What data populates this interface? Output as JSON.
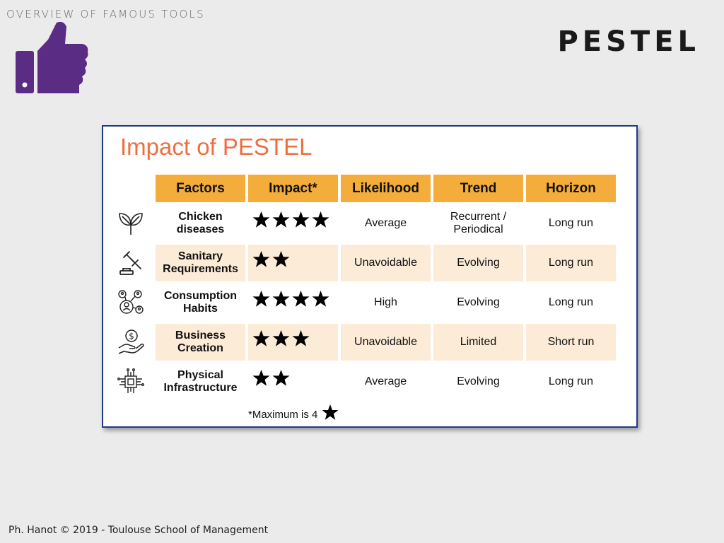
{
  "header": {
    "section_label": "OVERVIEW OF FAMOUS TOOLS",
    "slide_title": "PESTEL",
    "icon": "thumbs-up-icon",
    "icon_color": "#5b2c83"
  },
  "card": {
    "title": "Impact of PESTEL",
    "title_color": "#ee6e3f",
    "header_color": "#f4ad3b",
    "tint_color": "#fcebd6",
    "columns": [
      "Factors",
      "Impact*",
      "Likelihood",
      "Trend",
      "Horizon"
    ],
    "rows": [
      {
        "icon": "plant-icon",
        "factor": "Chicken diseases",
        "impact": 4,
        "likelihood": "Average",
        "trend": "Recurrent / Periodical",
        "horizon": "Long run"
      },
      {
        "icon": "gavel-icon",
        "factor": "Sanitary Requirements",
        "impact": 2,
        "likelihood": "Unavoidable",
        "trend": "Evolving",
        "horizon": "Long run"
      },
      {
        "icon": "people-network-icon",
        "factor": "Consumption Habits",
        "impact": 4,
        "likelihood": "High",
        "trend": "Evolving",
        "horizon": "Long run"
      },
      {
        "icon": "money-hand-icon",
        "factor": "Business Creation",
        "impact": 3,
        "likelihood": "Unavoidable",
        "trend": "Limited",
        "horizon": "Short run"
      },
      {
        "icon": "circuit-chip-icon",
        "factor": "Physical Infrastructure",
        "impact": 2,
        "likelihood": "Average",
        "trend": "Evolving",
        "horizon": "Long run"
      }
    ],
    "footnote": "*Maximum is 4"
  },
  "footer": "Ph. Hanot © 2019  -  Toulouse School of Management"
}
